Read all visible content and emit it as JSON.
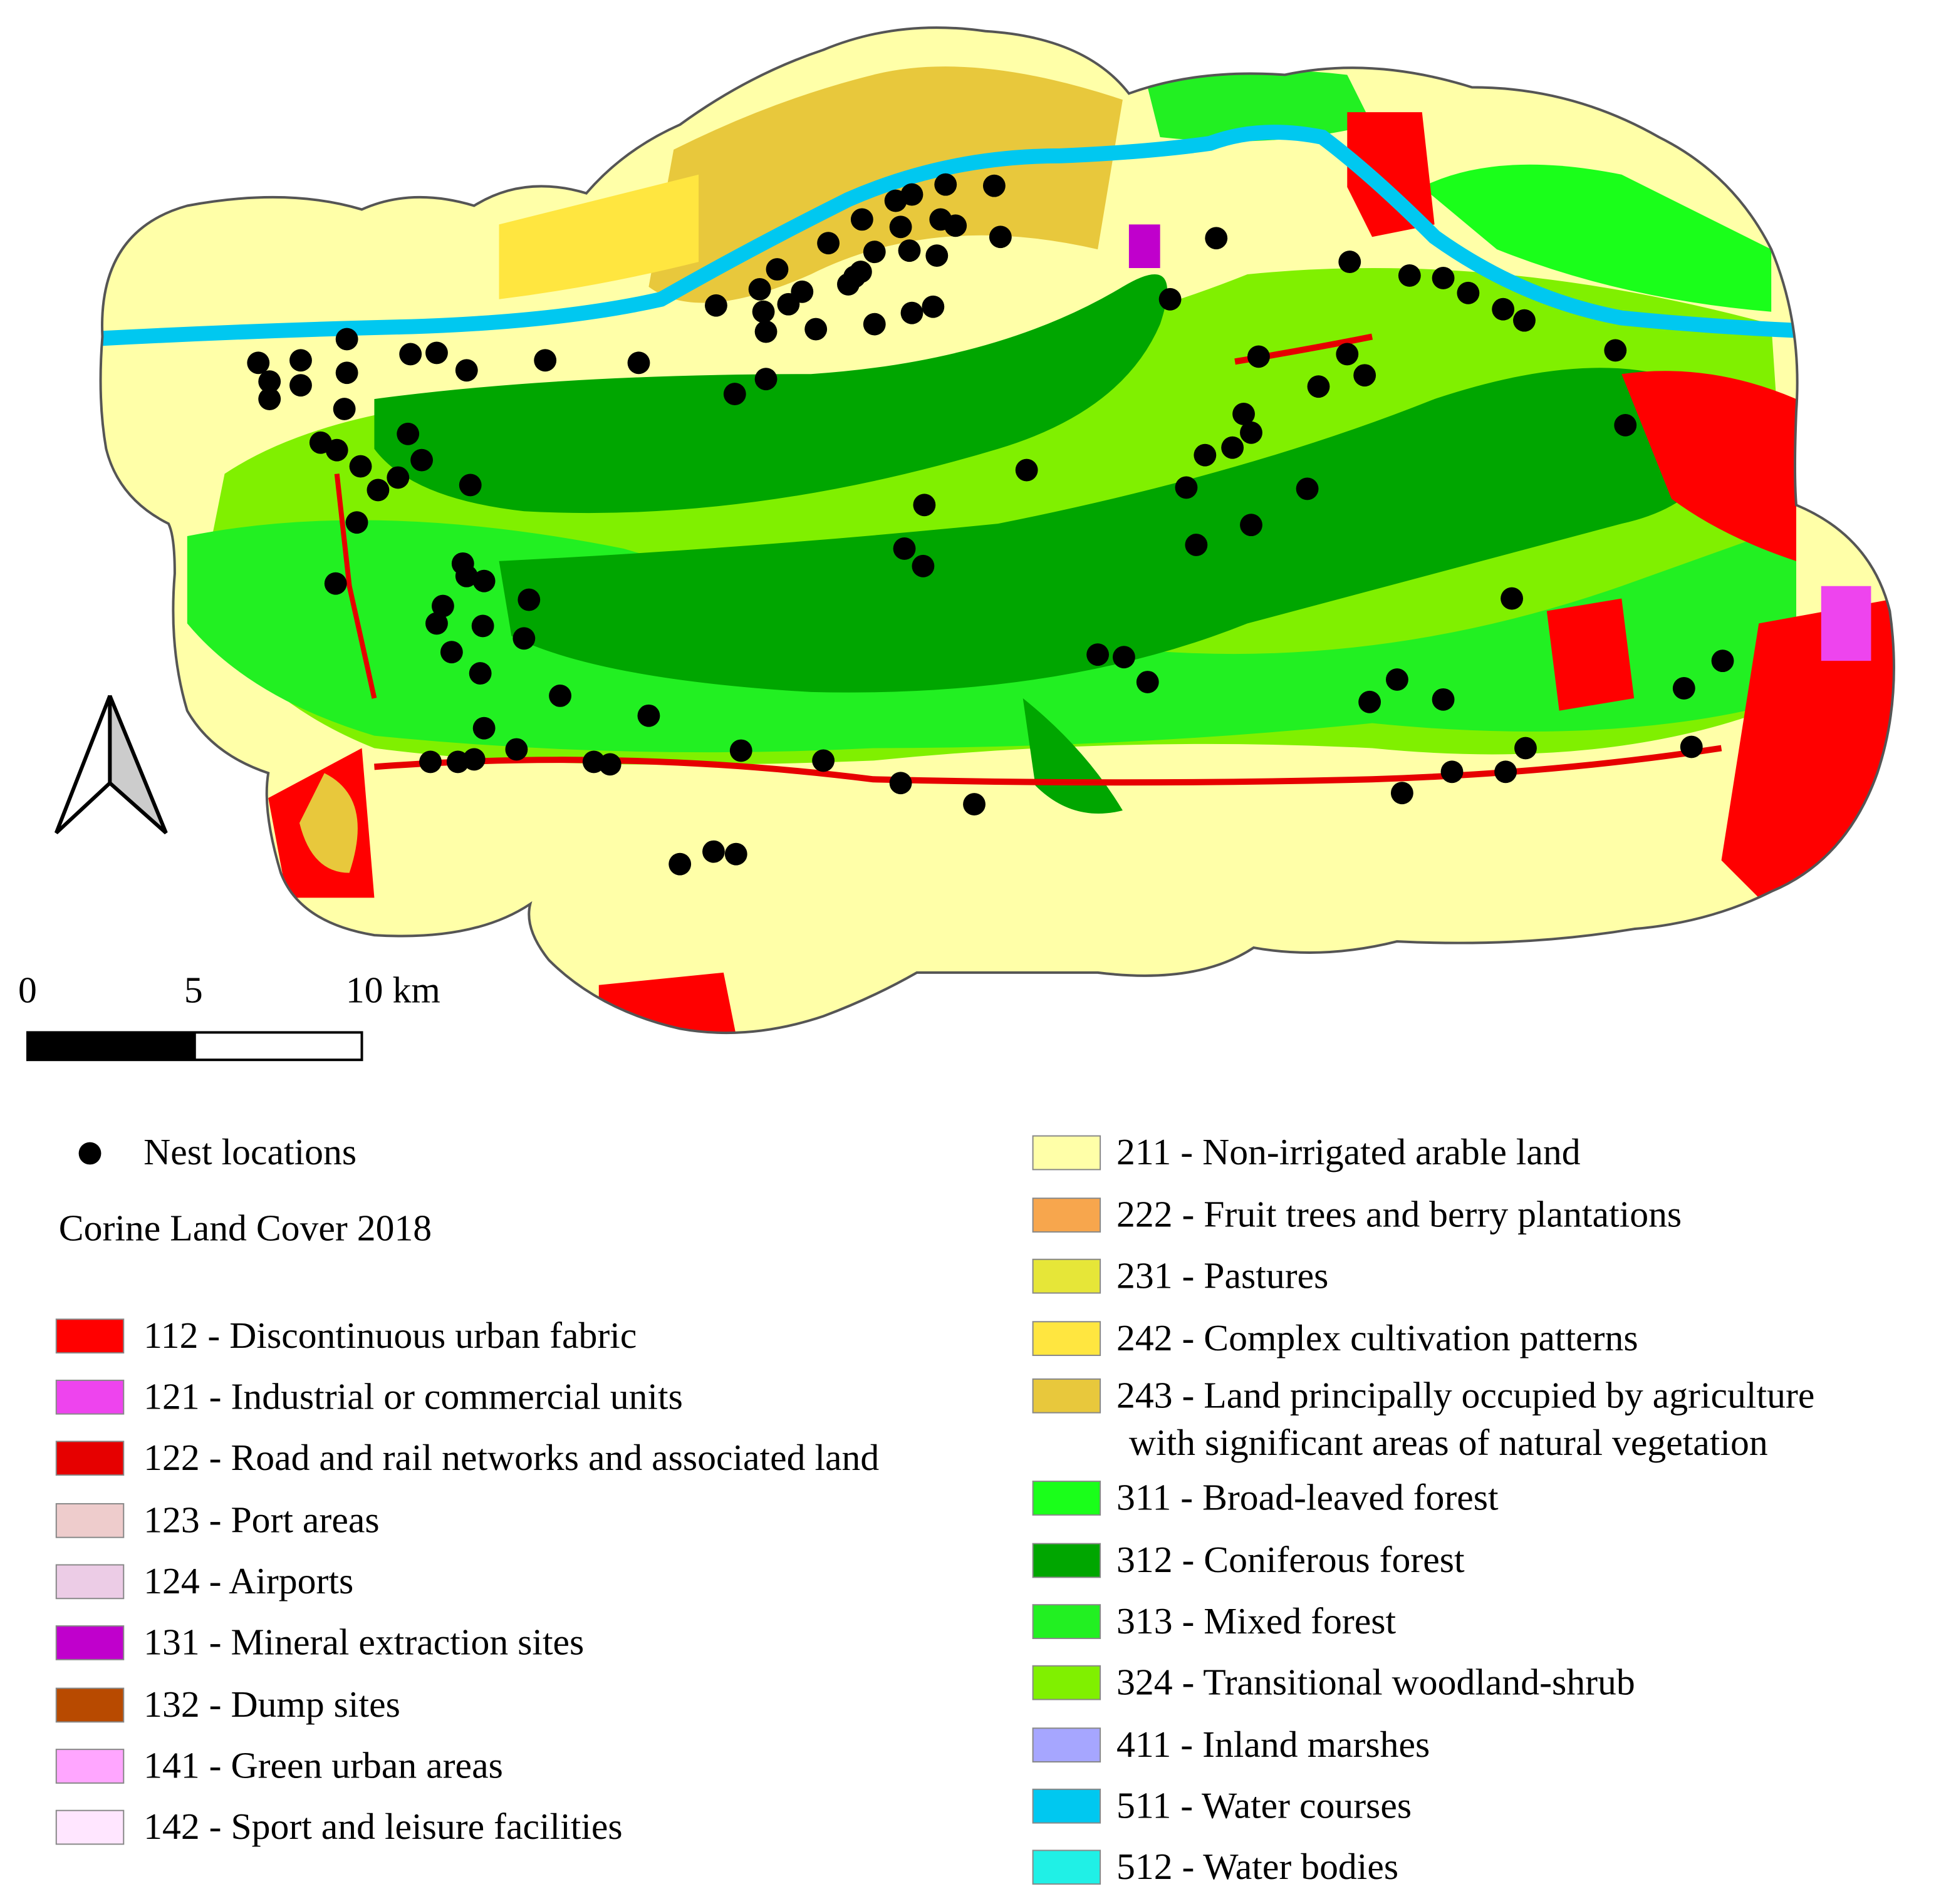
{
  "map": {
    "scale_bar": {
      "labels": [
        "0",
        "5",
        "10 km"
      ]
    },
    "legend": {
      "points": "Nest locations",
      "title": "Corine Land Cover 2018",
      "classes": [
        {
          "lines": [
            "112 - Discontinuous urban fabric"
          ],
          "color": "#ff0000"
        },
        {
          "lines": [
            "121 - Industrial or commercial units"
          ],
          "color": "#ee44ee"
        },
        {
          "lines": [
            "122 - Road and rail networks and associated land"
          ],
          "color": "#e60000"
        },
        {
          "lines": [
            "123 - Port areas"
          ],
          "color": "#eecccc"
        },
        {
          "lines": [
            "124 - Airports"
          ],
          "color": "#eccce6"
        },
        {
          "lines": [
            "131 - Mineral extraction sites"
          ],
          "color": "#c000cc"
        },
        {
          "lines": [
            "132 - Dump sites"
          ],
          "color": "#b84a00"
        },
        {
          "lines": [
            "141 - Green urban areas"
          ],
          "color": "#ffa6ff"
        },
        {
          "lines": [
            "142 - Sport and leisure facilities"
          ],
          "color": "#ffe6ff"
        },
        {
          "lines": [
            "211 - Non-irrigated arable land"
          ],
          "color": "#ffffa8"
        },
        {
          "lines": [
            "222 - Fruit trees and berry plantations"
          ],
          "color": "#f7a64d"
        },
        {
          "lines": [
            "231 - Pastures"
          ],
          "color": "#e6e638"
        },
        {
          "lines": [
            "242 - Complex cultivation patterns"
          ],
          "color": "#ffe640"
        },
        {
          "lines": [
            "243 - Land principally occupied by agriculture",
            "with significant areas of natural vegetation"
          ],
          "color": "#e8c83c"
        },
        {
          "lines": [
            "311 - Broad-leaved forest"
          ],
          "color": "#1aff1a"
        },
        {
          "lines": [
            "312 - Coniferous forest"
          ],
          "color": "#00a600"
        },
        {
          "lines": [
            "313 - Mixed forest"
          ],
          "color": "#22f022"
        },
        {
          "lines": [
            "324 - Transitional woodland-shrub"
          ],
          "color": "#80f000"
        },
        {
          "lines": [
            "411 - Inland marshes"
          ],
          "color": "#a6a6ff"
        },
        {
          "lines": [
            "511 - Water courses"
          ],
          "color": "#00c8f0"
        },
        {
          "lines": [
            "512 - Water bodies"
          ],
          "color": "#20f0e6"
        }
      ]
    }
  }
}
